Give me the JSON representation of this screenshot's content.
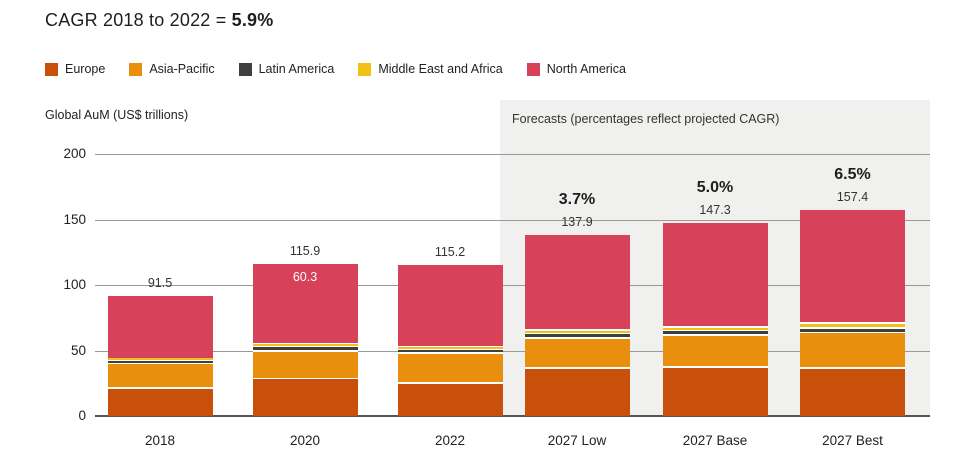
{
  "title": {
    "text": "CAGR 2018 to 2022 = ",
    "highlight": "5.9%"
  },
  "y_axis_label": "Global AuM (US$ trillions)",
  "forecast_panel_label": "Forecasts (percentages reflect projected CAGR)",
  "colors": {
    "europe": "#C8500A",
    "asia_pacific": "#E8900D",
    "latin_america": "#3F3F3F",
    "middle_east_and_africa": "#F2C119",
    "north_america": "#D7415A",
    "panel_background": "#F0F0EE",
    "gridline": "#999999"
  },
  "legend": [
    {
      "label": "Europe",
      "color": "#C8500A"
    },
    {
      "label": "Asia-Pacific",
      "color": "#E8900D"
    },
    {
      "label": "Latin America",
      "color": "#3F3F3F"
    },
    {
      "label": "Middle East and Africa",
      "color": "#F2C119"
    },
    {
      "label": "North America",
      "color": "#D7415A"
    }
  ],
  "chart_data": {
    "type": "bar",
    "stacked": true,
    "title": "CAGR 2018 to 2022 = 5.9%",
    "xlabel": "",
    "ylabel": "Global AuM (US$ trillions)",
    "ylim": [
      0,
      200
    ],
    "yticks": [
      0,
      50,
      100,
      150,
      200
    ],
    "grid": "horizontal",
    "legend_position": "top",
    "categories": [
      "2018",
      "2020",
      "2022",
      "2027 Low",
      "2027 Base",
      "2027 Best"
    ],
    "forecast_categories": [
      "2027 Low",
      "2027 Base",
      "2027 Best"
    ],
    "series": [
      {
        "name": "Europe",
        "color": "#C8500A",
        "values": [
          21.9,
          29.3,
          26.0,
          37.5,
          38.0,
          37.5
        ]
      },
      {
        "name": "Asia-Pacific",
        "color": "#E8900D",
        "values": [
          18.8,
          21.3,
          22.5,
          23.0,
          24.5,
          27.0
        ]
      },
      {
        "name": "Latin America",
        "color": "#3F3F3F",
        "values": [
          2.4,
          3.1,
          3.0,
          3.2,
          3.4,
          3.6
        ]
      },
      {
        "name": "Middle East and Africa",
        "color": "#F2C119",
        "values": [
          1.5,
          1.9,
          1.7,
          2.7,
          3.0,
          3.4
        ]
      },
      {
        "name": "North America",
        "color": "#D7415A",
        "values": [
          46.9,
          60.3,
          62.0,
          71.5,
          78.4,
          85.9
        ]
      }
    ],
    "totals": [
      91.5,
      115.9,
      115.2,
      137.9,
      147.3,
      157.4
    ],
    "bar_total_labels": [
      "91.5",
      "115.9",
      "115.2",
      "137.9",
      "147.3",
      "157.4"
    ],
    "cagr_labels": [
      "",
      "",
      "",
      "3.7%",
      "5.0%",
      "6.5%"
    ],
    "inner_segment_labels": [
      {
        "category": "2020",
        "series": "North America",
        "label": "60.3"
      }
    ]
  }
}
